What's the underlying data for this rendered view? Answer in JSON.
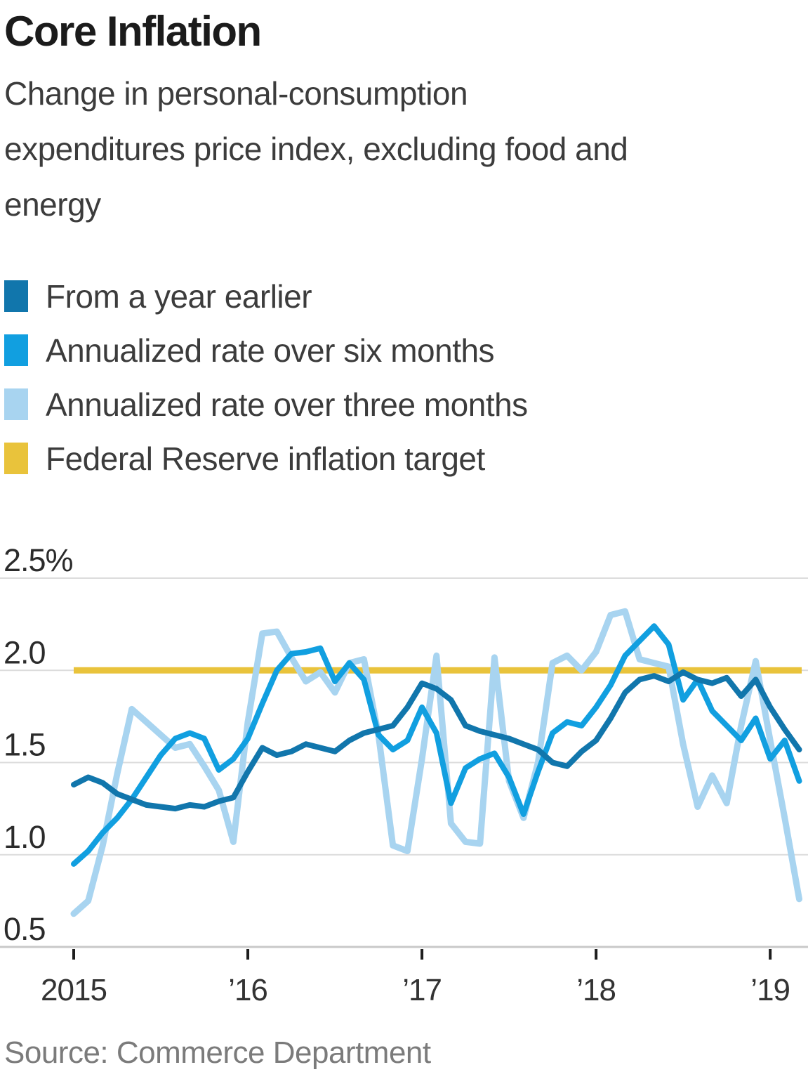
{
  "header": {
    "title": "Core Inflation",
    "subtitle_lines": [
      "Change in personal-consumption",
      "expenditures price index, excluding food and",
      "energy"
    ]
  },
  "legend": {
    "items": [
      {
        "label": "From a year earlier",
        "color": "#1176ac"
      },
      {
        "label": "Annualized rate over six months",
        "color": "#119fe0"
      },
      {
        "label": "Annualized rate over three months",
        "color": "#a8d4f0"
      },
      {
        "label": "Federal Reserve inflation target",
        "color": "#e9c33b"
      }
    ]
  },
  "footer": {
    "source": "Source: Commerce Department"
  },
  "chart_data": {
    "type": "line",
    "title": "Core Inflation",
    "xlabel": "",
    "ylabel": "",
    "unit": "%",
    "grid": "horizontal",
    "legend_position": "top-left",
    "ylim": [
      0.5,
      2.5
    ],
    "yticks": [
      {
        "value": 2.5,
        "label": "2.5%"
      },
      {
        "value": 2.0,
        "label": "2.0"
      },
      {
        "value": 1.5,
        "label": "1.5"
      },
      {
        "value": 1.0,
        "label": "1.0"
      },
      {
        "value": 0.5,
        "label": "0.5"
      }
    ],
    "xticks": [
      {
        "month_index": 0,
        "label": "2015"
      },
      {
        "month_index": 12,
        "label": "’16"
      },
      {
        "month_index": 24,
        "label": "’17"
      },
      {
        "month_index": 36,
        "label": "’18"
      },
      {
        "month_index": 48,
        "label": "’19"
      }
    ],
    "target_line": {
      "label": "Federal Reserve inflation target",
      "value": 2.0,
      "color": "#e9c33b"
    },
    "months": [
      "2015-01",
      "2015-02",
      "2015-03",
      "2015-04",
      "2015-05",
      "2015-06",
      "2015-07",
      "2015-08",
      "2015-09",
      "2015-10",
      "2015-11",
      "2015-12",
      "2016-01",
      "2016-02",
      "2016-03",
      "2016-04",
      "2016-05",
      "2016-06",
      "2016-07",
      "2016-08",
      "2016-09",
      "2016-10",
      "2016-11",
      "2016-12",
      "2017-01",
      "2017-02",
      "2017-03",
      "2017-04",
      "2017-05",
      "2017-06",
      "2017-07",
      "2017-08",
      "2017-09",
      "2017-10",
      "2017-11",
      "2017-12",
      "2018-01",
      "2018-02",
      "2018-03",
      "2018-04",
      "2018-05",
      "2018-06",
      "2018-07",
      "2018-08",
      "2018-09",
      "2018-10",
      "2018-11",
      "2018-12",
      "2019-01",
      "2019-02",
      "2019-03"
    ],
    "series": [
      {
        "id": "year",
        "name": "From a year earlier",
        "color": "#1176ac",
        "values": [
          1.38,
          1.42,
          1.39,
          1.33,
          1.3,
          1.27,
          1.26,
          1.25,
          1.27,
          1.26,
          1.29,
          1.31,
          1.45,
          1.58,
          1.54,
          1.56,
          1.6,
          1.58,
          1.56,
          1.62,
          1.66,
          1.68,
          1.7,
          1.8,
          1.93,
          1.9,
          1.84,
          1.7,
          1.67,
          1.65,
          1.63,
          1.6,
          1.57,
          1.5,
          1.48,
          1.56,
          1.62,
          1.74,
          1.88,
          1.95,
          1.97,
          1.94,
          1.99,
          1.95,
          1.93,
          1.96,
          1.86,
          1.95,
          1.8,
          1.68,
          1.57
        ]
      },
      {
        "id": "six-month",
        "name": "Annualized rate over six months",
        "color": "#119fe0",
        "values": [
          0.95,
          1.02,
          1.12,
          1.2,
          1.3,
          1.42,
          1.54,
          1.63,
          1.66,
          1.63,
          1.46,
          1.52,
          1.63,
          1.82,
          2.0,
          2.09,
          2.1,
          2.12,
          1.94,
          2.04,
          1.95,
          1.65,
          1.57,
          1.62,
          1.8,
          1.66,
          1.28,
          1.47,
          1.52,
          1.55,
          1.42,
          1.22,
          1.45,
          1.66,
          1.72,
          1.7,
          1.8,
          1.92,
          2.08,
          2.16,
          2.24,
          2.14,
          1.84,
          1.95,
          1.78,
          1.7,
          1.62,
          1.74,
          1.52,
          1.62,
          1.4
        ]
      },
      {
        "id": "three-month",
        "name": "Annualized rate over three months",
        "color": "#a8d4f0",
        "values": [
          0.68,
          0.75,
          1.05,
          1.44,
          1.79,
          1.72,
          1.65,
          1.58,
          1.6,
          1.48,
          1.35,
          1.07,
          1.72,
          2.2,
          2.21,
          2.07,
          1.94,
          1.99,
          1.88,
          2.04,
          2.06,
          1.65,
          1.05,
          1.02,
          1.52,
          2.08,
          1.17,
          1.07,
          1.06,
          2.07,
          1.4,
          1.2,
          1.5,
          2.04,
          2.08,
          2.0,
          2.1,
          2.3,
          2.32,
          2.06,
          2.04,
          2.02,
          1.6,
          1.26,
          1.43,
          1.28,
          1.7,
          2.05,
          1.62,
          1.2,
          0.76
        ]
      }
    ]
  }
}
